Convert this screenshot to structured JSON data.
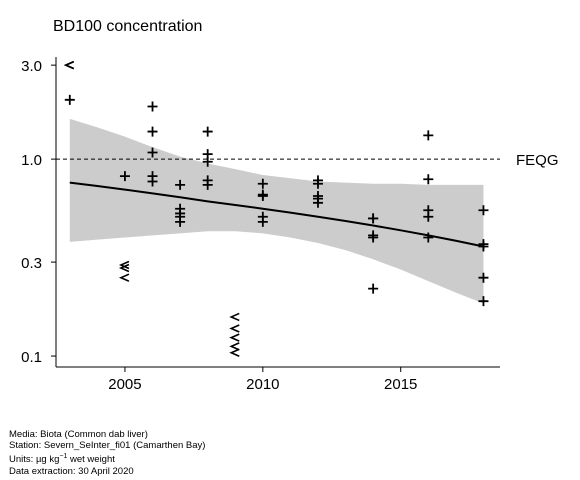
{
  "chart_data": {
    "type": "scatter",
    "title": "BD100 concentration",
    "y_scale": "log",
    "xlim": [
      2002.5,
      2018.6
    ],
    "ylim": [
      0.088,
      3.3
    ],
    "x_ticks": [
      2005,
      2010,
      2015
    ],
    "x_tick_labels": [
      "2005",
      "2010",
      "2015"
    ],
    "y_ticks": [
      0.1,
      0.3,
      1.0,
      3.0
    ],
    "y_tick_labels": [
      "0.1",
      "0.3",
      "1.0",
      "3.0"
    ],
    "grid": false,
    "reference_line": {
      "label": "FEQG",
      "value": 1.0,
      "style": "dashed"
    },
    "measured": [
      {
        "x": 2003,
        "y": 2.0
      },
      {
        "x": 2005,
        "y": 0.82
      },
      {
        "x": 2006,
        "y": 1.85
      },
      {
        "x": 2006,
        "y": 1.38
      },
      {
        "x": 2006,
        "y": 1.08
      },
      {
        "x": 2006,
        "y": 0.82
      },
      {
        "x": 2006,
        "y": 0.77
      },
      {
        "x": 2007,
        "y": 0.74
      },
      {
        "x": 2007,
        "y": 0.56
      },
      {
        "x": 2007,
        "y": 0.53
      },
      {
        "x": 2007,
        "y": 0.51
      },
      {
        "x": 2007,
        "y": 0.48
      },
      {
        "x": 2008,
        "y": 1.38
      },
      {
        "x": 2008,
        "y": 1.06
      },
      {
        "x": 2008,
        "y": 0.97
      },
      {
        "x": 2008,
        "y": 0.78
      },
      {
        "x": 2008,
        "y": 0.74
      },
      {
        "x": 2010,
        "y": 0.75
      },
      {
        "x": 2010,
        "y": 0.66
      },
      {
        "x": 2010,
        "y": 0.65
      },
      {
        "x": 2010,
        "y": 0.51
      },
      {
        "x": 2010,
        "y": 0.48
      },
      {
        "x": 2012,
        "y": 0.78
      },
      {
        "x": 2012,
        "y": 0.75
      },
      {
        "x": 2012,
        "y": 0.65
      },
      {
        "x": 2012,
        "y": 0.63
      },
      {
        "x": 2012,
        "y": 0.6
      },
      {
        "x": 2014,
        "y": 0.5
      },
      {
        "x": 2014,
        "y": 0.5
      },
      {
        "x": 2014,
        "y": 0.41
      },
      {
        "x": 2014,
        "y": 0.4
      },
      {
        "x": 2014,
        "y": 0.22
      },
      {
        "x": 2016,
        "y": 1.32
      },
      {
        "x": 2016,
        "y": 0.79
      },
      {
        "x": 2016,
        "y": 0.55
      },
      {
        "x": 2016,
        "y": 0.51
      },
      {
        "x": 2016,
        "y": 0.4
      },
      {
        "x": 2018,
        "y": 0.55
      },
      {
        "x": 2018,
        "y": 0.37
      },
      {
        "x": 2018,
        "y": 0.36
      },
      {
        "x": 2018,
        "y": 0.25
      },
      {
        "x": 2018,
        "y": 0.19
      }
    ],
    "less_than": [
      {
        "x": 2003,
        "y": 3.0
      },
      {
        "x": 2003,
        "y": 3.0
      },
      {
        "x": 2005,
        "y": 0.29
      },
      {
        "x": 2005,
        "y": 0.28
      },
      {
        "x": 2005,
        "y": 0.25
      },
      {
        "x": 2009,
        "y": 0.158
      },
      {
        "x": 2009,
        "y": 0.138
      },
      {
        "x": 2009,
        "y": 0.124
      },
      {
        "x": 2009,
        "y": 0.112
      },
      {
        "x": 2009,
        "y": 0.104
      }
    ],
    "trend": {
      "x": [
        2003,
        2004,
        2005,
        2006,
        2007,
        2008,
        2009,
        2010,
        2011,
        2012,
        2013,
        2014,
        2015,
        2016,
        2017,
        2018
      ],
      "y": [
        0.76,
        0.73,
        0.7,
        0.67,
        0.64,
        0.61,
        0.585,
        0.56,
        0.535,
        0.51,
        0.485,
        0.46,
        0.435,
        0.41,
        0.385,
        0.36
      ],
      "lower": [
        0.38,
        0.39,
        0.4,
        0.41,
        0.42,
        0.43,
        0.43,
        0.42,
        0.4,
        0.375,
        0.345,
        0.31,
        0.275,
        0.24,
        0.21,
        0.185
      ],
      "upper": [
        1.6,
        1.45,
        1.3,
        1.15,
        1.03,
        0.95,
        0.89,
        0.83,
        0.8,
        0.77,
        0.76,
        0.75,
        0.75,
        0.74,
        0.74,
        0.74
      ]
    }
  },
  "footer": {
    "media": "Media: Biota (Common dab liver)",
    "station": "Station: Severn_SeInter_fi01 (Camarthen Bay)",
    "units_prefix": "Units: ",
    "units_mu": "µg kg",
    "units_sup": "−1",
    "units_suffix": " wet weight",
    "extraction": "Data extraction: 30 April 2020"
  },
  "colors": {
    "band": "#cccccc",
    "line": "#000000",
    "ref": "#000000"
  }
}
